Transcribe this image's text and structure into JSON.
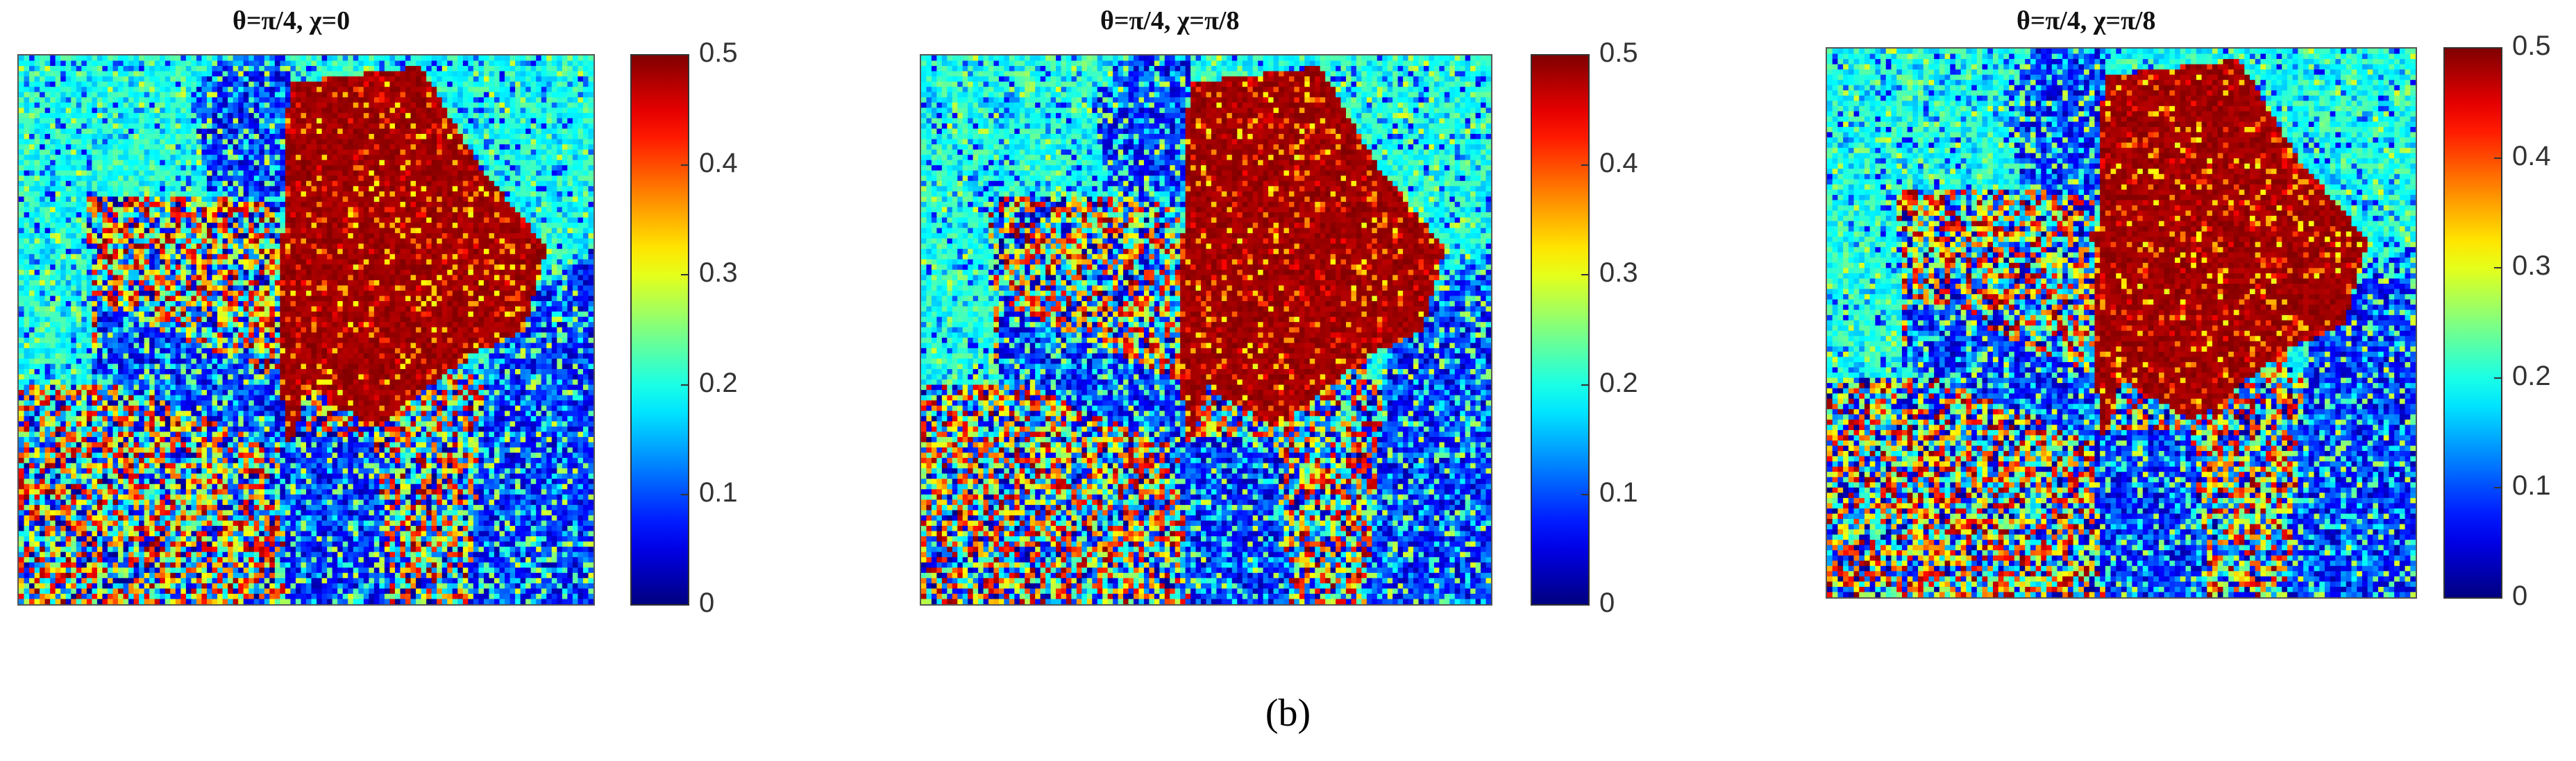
{
  "chart_data": [
    {
      "type": "heatmap",
      "title": "θ=π/4, χ=0",
      "colormap": "jet",
      "colorbar": {
        "min": 0,
        "max": 0.5,
        "ticks": [
          "0.5",
          "0.4",
          "0.3",
          "0.2",
          "0.1",
          "0"
        ]
      }
    },
    {
      "type": "heatmap",
      "title": "θ=π/4, χ=π/8",
      "colormap": "jet",
      "colorbar": {
        "min": 0,
        "max": 0.5,
        "ticks": [
          "0.5",
          "0.4",
          "0.3",
          "0.2",
          "0.1",
          "0"
        ]
      }
    },
    {
      "type": "heatmap",
      "title": "θ=π/4, χ=π/8",
      "colormap": "jet",
      "colorbar": {
        "min": 0,
        "max": 0.5,
        "ticks": [
          "0.5",
          "0.4",
          "0.3",
          "0.2",
          "0.1",
          "0"
        ]
      }
    }
  ],
  "caption": "(b)"
}
